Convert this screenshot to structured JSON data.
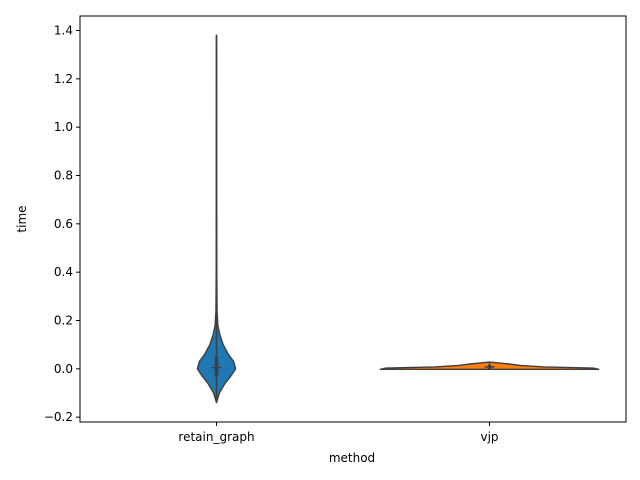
{
  "chart_data": {
    "type": "violin",
    "title": "",
    "xlabel": "method",
    "ylabel": "time",
    "ylim": [
      -0.22,
      1.46
    ],
    "yticks": [
      -0.2,
      0.0,
      0.2,
      0.4,
      0.6,
      0.8,
      1.0,
      1.2,
      1.4
    ],
    "ytick_labels": [
      "−0.2",
      "0.0",
      "0.2",
      "0.4",
      "0.6",
      "0.8",
      "1.0",
      "1.2",
      "1.4"
    ],
    "categories": [
      "retain_graph",
      "vjp"
    ],
    "grid": false,
    "legend": "none",
    "violins": [
      {
        "category": "retain_graph",
        "color": "#1f77b4",
        "min": -0.14,
        "max": 1.38,
        "median": 0.005,
        "q1": -0.03,
        "q3": 0.05,
        "profile": [
          [
            -0.14,
            0.0
          ],
          [
            -0.1,
            0.15
          ],
          [
            -0.06,
            0.45
          ],
          [
            -0.03,
            0.75
          ],
          [
            0.0,
            1.0
          ],
          [
            0.03,
            0.9
          ],
          [
            0.06,
            0.62
          ],
          [
            0.1,
            0.35
          ],
          [
            0.14,
            0.18
          ],
          [
            0.18,
            0.07
          ],
          [
            0.24,
            0.03
          ],
          [
            0.4,
            0.015
          ],
          [
            0.7,
            0.01
          ],
          [
            1.0,
            0.008
          ],
          [
            1.38,
            0.005
          ]
        ],
        "half_width_units": 0.07
      },
      {
        "category": "vjp",
        "color": "#ff7f0e",
        "min": -0.002,
        "max": 0.028,
        "median": 0.008,
        "q1": 0.001,
        "q3": 0.016,
        "profile": [
          [
            -0.002,
            1.0
          ],
          [
            0.003,
            0.95
          ],
          [
            0.008,
            0.5
          ],
          [
            0.014,
            0.28
          ],
          [
            0.02,
            0.18
          ],
          [
            0.028,
            0.0
          ]
        ],
        "half_width_units": 0.4
      }
    ]
  }
}
